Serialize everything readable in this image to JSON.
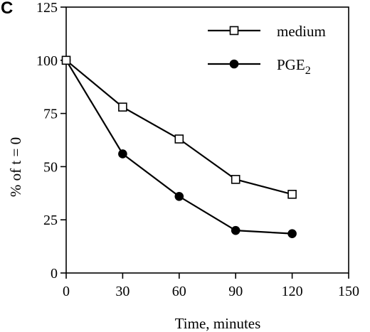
{
  "panel_label": "C",
  "chart_data": {
    "type": "line",
    "xlabel": "Time, minutes",
    "ylabel": "% of t = 0",
    "xlim": [
      0,
      150
    ],
    "ylim": [
      0,
      125
    ],
    "xticks": [
      0,
      30,
      60,
      90,
      120,
      150
    ],
    "yticks": [
      0,
      25,
      50,
      75,
      100,
      125
    ],
    "grid": false,
    "legend_position": "top-right",
    "series": [
      {
        "name": "medium",
        "name_subscript": "",
        "marker": "open-square",
        "x": [
          0,
          30,
          60,
          90,
          120
        ],
        "y": [
          100,
          78,
          63,
          44,
          37
        ]
      },
      {
        "name": "PGE",
        "name_subscript": "2",
        "marker": "filled-circle",
        "x": [
          0,
          30,
          60,
          90,
          120
        ],
        "y": [
          100,
          56,
          36,
          20,
          18.5
        ]
      }
    ]
  }
}
